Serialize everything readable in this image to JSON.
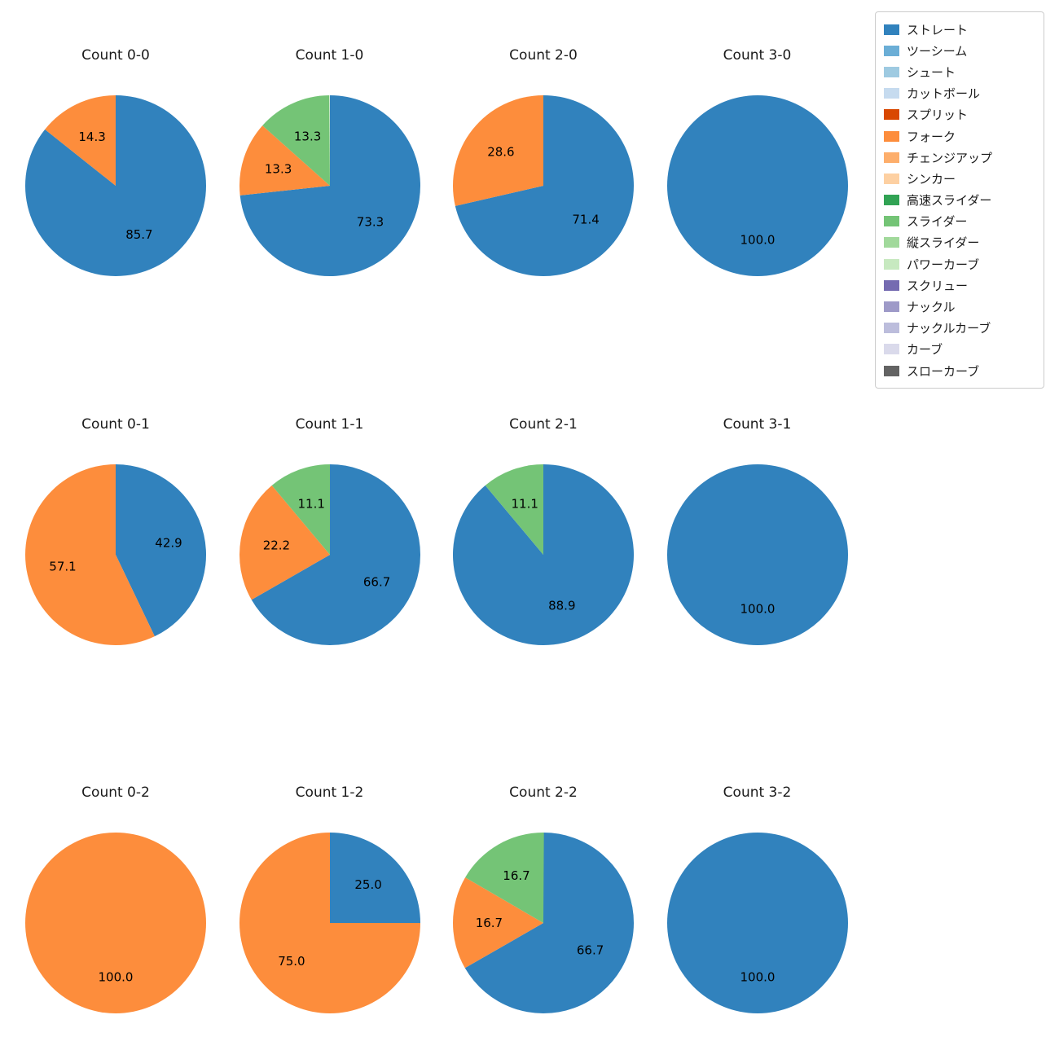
{
  "figure": {
    "background": "#ffffff"
  },
  "palette": {
    "ストレート": "#3182bd",
    "ツーシーム": "#6baed6",
    "シュート": "#9ecae1",
    "カットボール": "#c6dbef",
    "スプリット": "#d94801",
    "フォーク": "#fd8d3c",
    "チェンジアップ": "#fdae6b",
    "シンカー": "#fdd0a2",
    "高速スライダー": "#31a354",
    "スライダー": "#74c476",
    "縦スライダー": "#a1d99b",
    "パワーカーブ": "#c7e9c0",
    "スクリュー": "#756bb1",
    "ナックル": "#9e9ac8",
    "ナックルカーブ": "#bcbddc",
    "カーブ": "#dadaeb",
    "スローカーブ": "#636363"
  },
  "legend": {
    "items": [
      "ストレート",
      "ツーシーム",
      "シュート",
      "カットボール",
      "スプリット",
      "フォーク",
      "チェンジアップ",
      "シンカー",
      "高速スライダー",
      "スライダー",
      "縦スライダー",
      "パワーカーブ",
      "スクリュー",
      "ナックル",
      "ナックルカーブ",
      "カーブ",
      "スローカーブ"
    ]
  },
  "chart_data": [
    {
      "type": "pie",
      "title": "Count 0-0",
      "slices": [
        {
          "label": "ストレート",
          "value": 85.7
        },
        {
          "label": "フォーク",
          "value": 14.3
        }
      ]
    },
    {
      "type": "pie",
      "title": "Count 1-0",
      "slices": [
        {
          "label": "ストレート",
          "value": 73.3
        },
        {
          "label": "フォーク",
          "value": 13.3
        },
        {
          "label": "スライダー",
          "value": 13.3
        }
      ]
    },
    {
      "type": "pie",
      "title": "Count 2-0",
      "slices": [
        {
          "label": "ストレート",
          "value": 71.4
        },
        {
          "label": "フォーク",
          "value": 28.6
        }
      ]
    },
    {
      "type": "pie",
      "title": "Count 3-0",
      "slices": [
        {
          "label": "ストレート",
          "value": 100.0
        }
      ]
    },
    {
      "type": "pie",
      "title": "Count 0-1",
      "slices": [
        {
          "label": "ストレート",
          "value": 42.9
        },
        {
          "label": "フォーク",
          "value": 57.1
        }
      ]
    },
    {
      "type": "pie",
      "title": "Count 1-1",
      "slices": [
        {
          "label": "ストレート",
          "value": 66.7
        },
        {
          "label": "フォーク",
          "value": 22.2
        },
        {
          "label": "スライダー",
          "value": 11.1
        }
      ]
    },
    {
      "type": "pie",
      "title": "Count 2-1",
      "slices": [
        {
          "label": "ストレート",
          "value": 88.9
        },
        {
          "label": "スライダー",
          "value": 11.1
        }
      ]
    },
    {
      "type": "pie",
      "title": "Count 3-1",
      "slices": [
        {
          "label": "ストレート",
          "value": 100.0
        }
      ]
    },
    {
      "type": "pie",
      "title": "Count 0-2",
      "slices": [
        {
          "label": "フォーク",
          "value": 100.0
        }
      ]
    },
    {
      "type": "pie",
      "title": "Count 1-2",
      "slices": [
        {
          "label": "ストレート",
          "value": 25.0
        },
        {
          "label": "フォーク",
          "value": 75.0
        }
      ]
    },
    {
      "type": "pie",
      "title": "Count 2-2",
      "slices": [
        {
          "label": "ストレート",
          "value": 66.7
        },
        {
          "label": "フォーク",
          "value": 16.7
        },
        {
          "label": "スライダー",
          "value": 16.7
        }
      ]
    },
    {
      "type": "pie",
      "title": "Count 3-2",
      "slices": [
        {
          "label": "ストレート",
          "value": 100.0
        }
      ]
    }
  ]
}
